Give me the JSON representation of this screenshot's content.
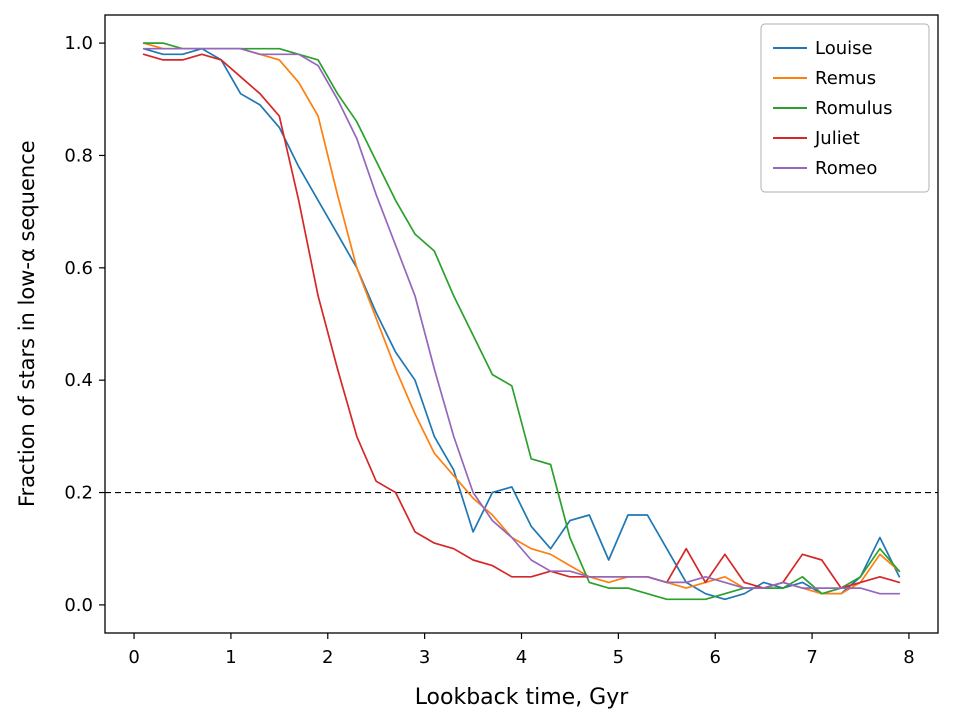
{
  "figure": {
    "background": "#ffffff"
  },
  "chart_data": {
    "type": "line",
    "title": "",
    "xlabel": "Lookback time, Gyr",
    "ylabel": "Fraction of stars in low-α sequence",
    "xlim": [
      -0.3,
      8.3
    ],
    "ylim": [
      -0.05,
      1.05
    ],
    "xticks": [
      0,
      1,
      2,
      3,
      4,
      5,
      6,
      7,
      8
    ],
    "yticks": [
      0.0,
      0.2,
      0.4,
      0.6,
      0.8,
      1.0
    ],
    "grid": false,
    "legend_position": "upper right",
    "reference_line": {
      "y": 0.2,
      "style": "dashed",
      "color": "#000000"
    },
    "x": [
      0.1,
      0.3,
      0.5,
      0.7,
      0.9,
      1.1,
      1.3,
      1.5,
      1.7,
      1.9,
      2.1,
      2.3,
      2.5,
      2.7,
      2.9,
      3.1,
      3.3,
      3.5,
      3.7,
      3.9,
      4.1,
      4.3,
      4.5,
      4.7,
      4.9,
      5.1,
      5.3,
      5.5,
      5.7,
      5.9,
      6.1,
      6.3,
      6.5,
      6.7,
      6.9,
      7.1,
      7.3,
      7.5,
      7.7,
      7.9
    ],
    "series": [
      {
        "name": "Louise",
        "color": "#1f77b4",
        "values": [
          0.99,
          0.98,
          0.98,
          0.99,
          0.97,
          0.91,
          0.89,
          0.85,
          0.78,
          0.72,
          0.66,
          0.6,
          0.52,
          0.45,
          0.4,
          0.3,
          0.24,
          0.13,
          0.2,
          0.21,
          0.14,
          0.1,
          0.15,
          0.16,
          0.08,
          0.16,
          0.16,
          0.1,
          0.04,
          0.02,
          0.01,
          0.02,
          0.04,
          0.03,
          0.04,
          0.02,
          0.02,
          0.05,
          0.12,
          0.05
        ]
      },
      {
        "name": "Remus",
        "color": "#ff7f0e",
        "values": [
          1.0,
          0.99,
          0.99,
          0.99,
          0.99,
          0.99,
          0.98,
          0.97,
          0.93,
          0.87,
          0.73,
          0.6,
          0.51,
          0.42,
          0.34,
          0.27,
          0.23,
          0.19,
          0.16,
          0.12,
          0.1,
          0.09,
          0.07,
          0.05,
          0.04,
          0.05,
          0.05,
          0.04,
          0.03,
          0.04,
          0.05,
          0.03,
          0.03,
          0.04,
          0.03,
          0.02,
          0.02,
          0.04,
          0.09,
          0.06
        ]
      },
      {
        "name": "Romulus",
        "color": "#2ca02c",
        "values": [
          1.0,
          1.0,
          0.99,
          0.99,
          0.99,
          0.99,
          0.99,
          0.99,
          0.98,
          0.97,
          0.91,
          0.86,
          0.79,
          0.72,
          0.66,
          0.63,
          0.55,
          0.48,
          0.41,
          0.39,
          0.26,
          0.25,
          0.12,
          0.04,
          0.03,
          0.03,
          0.02,
          0.01,
          0.01,
          0.01,
          0.02,
          0.03,
          0.03,
          0.03,
          0.05,
          0.02,
          0.03,
          0.05,
          0.1,
          0.06
        ]
      },
      {
        "name": "Juliet",
        "color": "#d62728",
        "values": [
          0.98,
          0.97,
          0.97,
          0.98,
          0.97,
          0.94,
          0.91,
          0.87,
          0.72,
          0.55,
          0.42,
          0.3,
          0.22,
          0.2,
          0.13,
          0.11,
          0.1,
          0.08,
          0.07,
          0.05,
          0.05,
          0.06,
          0.05,
          0.05,
          0.05,
          0.05,
          0.05,
          0.04,
          0.1,
          0.04,
          0.09,
          0.04,
          0.03,
          0.04,
          0.09,
          0.08,
          0.03,
          0.04,
          0.05,
          0.04
        ]
      },
      {
        "name": "Romeo",
        "color": "#9467bd",
        "values": [
          0.99,
          0.99,
          0.99,
          0.99,
          0.99,
          0.99,
          0.98,
          0.98,
          0.98,
          0.96,
          0.9,
          0.83,
          0.73,
          0.64,
          0.55,
          0.42,
          0.3,
          0.2,
          0.15,
          0.12,
          0.08,
          0.06,
          0.06,
          0.05,
          0.05,
          0.05,
          0.05,
          0.04,
          0.04,
          0.05,
          0.04,
          0.03,
          0.03,
          0.04,
          0.03,
          0.03,
          0.03,
          0.03,
          0.02,
          0.02
        ]
      }
    ]
  }
}
